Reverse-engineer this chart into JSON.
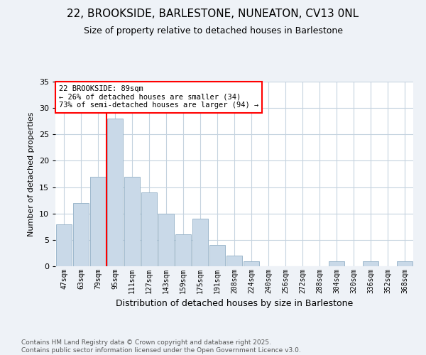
{
  "title1": "22, BROOKSIDE, BARLESTONE, NUNEATON, CV13 0NL",
  "title2": "Size of property relative to detached houses in Barlestone",
  "xlabel": "Distribution of detached houses by size in Barlestone",
  "ylabel": "Number of detached properties",
  "categories": [
    "47sqm",
    "63sqm",
    "79sqm",
    "95sqm",
    "111sqm",
    "127sqm",
    "143sqm",
    "159sqm",
    "175sqm",
    "191sqm",
    "208sqm",
    "224sqm",
    "240sqm",
    "256sqm",
    "272sqm",
    "288sqm",
    "304sqm",
    "320sqm",
    "336sqm",
    "352sqm",
    "368sqm"
  ],
  "values": [
    8,
    12,
    17,
    28,
    17,
    14,
    10,
    6,
    9,
    4,
    2,
    1,
    0,
    0,
    0,
    0,
    1,
    0,
    1,
    0,
    1
  ],
  "bar_color": "#c9d9e8",
  "bar_edge_color": "#9db8cc",
  "vline_color": "red",
  "vline_pos": 2.5,
  "annotation_text": "22 BROOKSIDE: 89sqm\n← 26% of detached houses are smaller (34)\n73% of semi-detached houses are larger (94) →",
  "ylim": [
    0,
    35
  ],
  "yticks": [
    0,
    5,
    10,
    15,
    20,
    25,
    30,
    35
  ],
  "background_color": "#eef2f7",
  "plot_bg_color": "#ffffff",
  "footer": "Contains HM Land Registry data © Crown copyright and database right 2025.\nContains public sector information licensed under the Open Government Licence v3.0.",
  "grid_color": "#c5d3df",
  "title1_fontsize": 11,
  "title2_fontsize": 9,
  "ylabel_fontsize": 8,
  "xlabel_fontsize": 9,
  "tick_fontsize": 7,
  "footer_fontsize": 6.5,
  "ann_fontsize": 7.5
}
